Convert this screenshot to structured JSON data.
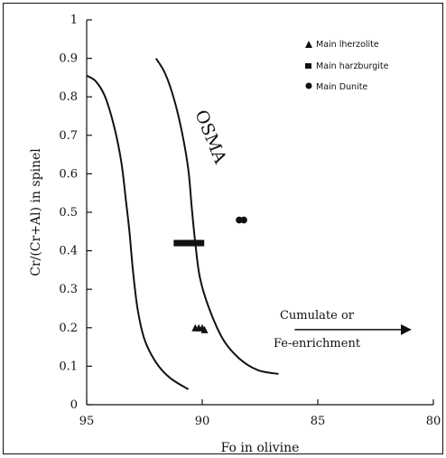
{
  "chart_data": {
    "type": "scatter",
    "title": "",
    "xlabel": "Fo in olivine",
    "ylabel": "Cr/(Cr+Al) in spinel",
    "xlim": [
      95,
      80
    ],
    "ylim": [
      0,
      1
    ],
    "x_reversed": true,
    "x_ticks": [
      95,
      90,
      85,
      80
    ],
    "y_ticks": [
      0,
      0.1,
      0.2,
      0.3,
      0.4,
      0.5,
      0.6,
      0.7,
      0.8,
      0.9,
      1
    ],
    "grid": false,
    "legend_position": "top-right",
    "series": [
      {
        "name": "Main lherzolite",
        "marker": "triangle",
        "color": "#111111",
        "points": [
          [
            90.3,
            0.2
          ],
          [
            90.15,
            0.2
          ],
          [
            90.0,
            0.2
          ],
          [
            89.9,
            0.195
          ]
        ]
      },
      {
        "name": "Main harzburgite",
        "marker": "square",
        "color": "#111111",
        "points": [
          [
            91.1,
            0.42
          ],
          [
            90.95,
            0.42
          ],
          [
            90.8,
            0.42
          ],
          [
            90.65,
            0.42
          ],
          [
            90.5,
            0.42
          ],
          [
            90.35,
            0.42
          ],
          [
            90.2,
            0.42
          ],
          [
            90.05,
            0.42
          ]
        ]
      },
      {
        "name": "Main Dunite",
        "marker": "circle",
        "color": "#111111",
        "points": [
          [
            88.4,
            0.48
          ],
          [
            88.2,
            0.48
          ]
        ]
      }
    ],
    "curves": [
      {
        "points": [
          [
            95.0,
            0.855
          ],
          [
            94.6,
            0.84
          ],
          [
            94.2,
            0.8
          ],
          [
            93.8,
            0.72
          ],
          [
            93.5,
            0.63
          ],
          [
            93.3,
            0.53
          ],
          [
            93.15,
            0.45
          ],
          [
            93.0,
            0.35
          ],
          [
            92.8,
            0.25
          ],
          [
            92.5,
            0.17
          ],
          [
            92.0,
            0.11
          ],
          [
            91.4,
            0.07
          ],
          [
            90.6,
            0.04
          ]
        ]
      },
      {
        "points": [
          [
            92.0,
            0.9
          ],
          [
            91.6,
            0.86
          ],
          [
            91.2,
            0.79
          ],
          [
            90.85,
            0.7
          ],
          [
            90.6,
            0.61
          ],
          [
            90.45,
            0.51
          ],
          [
            90.3,
            0.42
          ],
          [
            90.1,
            0.33
          ],
          [
            89.7,
            0.25
          ],
          [
            89.1,
            0.17
          ],
          [
            88.4,
            0.12
          ],
          [
            87.6,
            0.09
          ],
          [
            86.7,
            0.08
          ]
        ]
      }
    ],
    "annotations": {
      "ostma": "OSMA",
      "cumulate_line1": "Cumulate or",
      "cumulate_line2": "Fe-enrichment"
    },
    "arrow": {
      "from": [
        86.0,
        0.195
      ],
      "to": [
        81.0,
        0.195
      ]
    }
  }
}
